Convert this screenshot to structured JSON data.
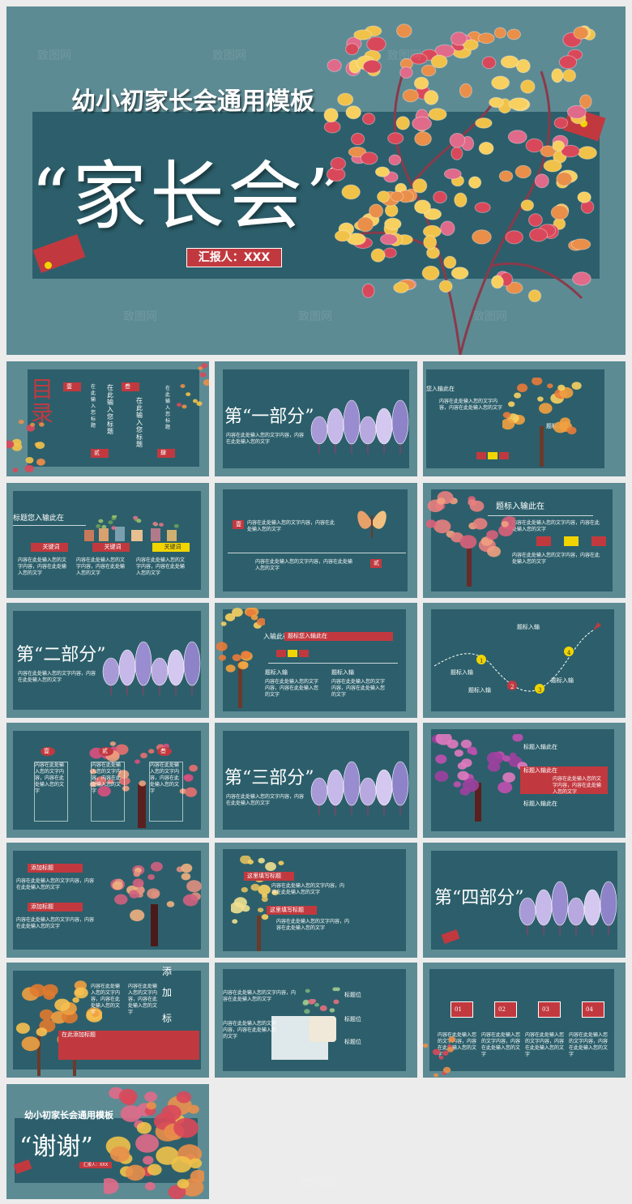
{
  "cover": {
    "subtitle": "幼小初家长会通用模板",
    "title": "“家长会”",
    "reporter": "汇报人：XXX"
  },
  "watermark": "致图网",
  "slides": {
    "toc": {
      "title": "目录",
      "nums": [
        "壹",
        "贰",
        "叁",
        "肆"
      ],
      "items": [
        "在此输入您标题",
        "在此输入您标题",
        "在此输入您标题",
        "在此输入您标题"
      ]
    },
    "part1": "第“一部分”",
    "s3": {
      "heading": "您入输此在",
      "tag": "题标入输"
    },
    "s4": {
      "title": "标题您入输此在",
      "keywords": [
        "关键词",
        "关键词",
        "关键词"
      ]
    },
    "s5": {
      "tag1": "壹",
      "tag2": "贰"
    },
    "s6": {
      "title": "题标入输此在"
    },
    "part2": "第“二部分”",
    "s8": {
      "title": "题标您入输此在",
      "left": "入输此在",
      "tags": [
        "题标入输",
        "题标入输"
      ]
    },
    "s9": {
      "labels": [
        "题标入输",
        "题标入输",
        "题标入输",
        "题标入输"
      ],
      "nums": [
        "1",
        "2",
        "3",
        "4"
      ]
    },
    "s10": {
      "nums": [
        "壹",
        "贰",
        "叁"
      ]
    },
    "part3": "第“三部分”",
    "s12": {
      "labels": [
        "标题入输此在",
        "标题入输此在",
        "标题入输此在"
      ]
    },
    "s13": {
      "labels": [
        "添加标题",
        "添加标题"
      ]
    },
    "s14": {
      "labels": [
        "这里填写标题",
        "这里填写标题"
      ]
    },
    "part4": "第“四部分”",
    "s16": {
      "vertical": [
        "添",
        "加",
        "标",
        "题"
      ],
      "label": "在此添加标题"
    },
    "s17": {
      "labels": [
        "标题位",
        "标题位",
        "标题位"
      ]
    },
    "s18": {
      "nums": [
        "01",
        "02",
        "03",
        "04"
      ]
    },
    "end": {
      "subtitle": "幼小初家长会通用模板",
      "title": "“谢谢”",
      "reporter": "汇报人：XXX"
    }
  },
  "filler": "内容在此处输入您的文字内容，内容在此处输入您的文字",
  "colors": {
    "bg": "#5d8b94",
    "panel": "#2c5f6b",
    "accent": "#c1393f",
    "yellow": "#f1d400"
  }
}
